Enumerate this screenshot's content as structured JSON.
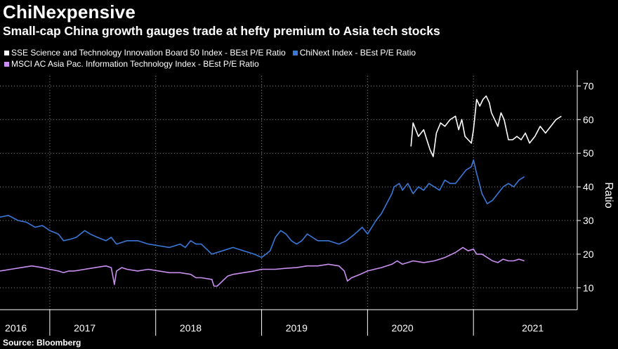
{
  "title": "ChiNexpensive",
  "subtitle": "Small-cap China growth gauges trade at hefty premium to Asia tech stocks",
  "source": "Source: Bloomberg",
  "colors": {
    "star50": "#ffffff",
    "chinext": "#3a78d8",
    "msci": "#c98ef0",
    "grid": "#8a8a8a",
    "axis": "#ffffff"
  },
  "chart_data": {
    "type": "line",
    "ylabel": "Ratio",
    "ylim": [
      3.5,
      73
    ],
    "yticks": [
      10,
      20,
      30,
      40,
      50,
      60,
      70
    ],
    "ytick_labels": [
      "10",
      "20",
      "30",
      "40",
      "50",
      "60",
      "70"
    ],
    "xlim": [
      2016.0,
      2021.45
    ],
    "year_labels": [
      {
        "label": "2016",
        "at": 2016.15
      },
      {
        "label": "2017",
        "at": 2016.8
      },
      {
        "label": "2018",
        "at": 2017.8
      },
      {
        "label": "2019",
        "at": 2018.8
      },
      {
        "label": "2020",
        "at": 2019.8
      },
      {
        "label": "2021",
        "at": 2021.03
      }
    ],
    "year_dividers": [
      2016.47,
      2017.47,
      2018.47,
      2019.47,
      2020.47
    ],
    "series": [
      {
        "name": "SSE Science and Technology Innovation Board 50 Index - BEst P/E Ratio",
        "key": "star50",
        "points": [
          [
            2019.88,
            52
          ],
          [
            2019.9,
            59
          ],
          [
            2019.95,
            55
          ],
          [
            2020.0,
            57
          ],
          [
            2020.03,
            54
          ],
          [
            2020.06,
            51
          ],
          [
            2020.09,
            49
          ],
          [
            2020.12,
            56
          ],
          [
            2020.16,
            59
          ],
          [
            2020.2,
            58
          ],
          [
            2020.25,
            60
          ],
          [
            2020.3,
            61
          ],
          [
            2020.33,
            57
          ],
          [
            2020.36,
            60
          ],
          [
            2020.39,
            55
          ],
          [
            2020.42,
            54
          ],
          [
            2020.45,
            53
          ],
          [
            2020.47,
            57
          ],
          [
            2020.5,
            66
          ],
          [
            2020.53,
            64
          ],
          [
            2020.56,
            66
          ],
          [
            2020.59,
            67
          ],
          [
            2020.62,
            65
          ],
          [
            2020.64,
            62
          ],
          [
            2020.67,
            60
          ],
          [
            2020.7,
            58
          ],
          [
            2020.73,
            62
          ],
          [
            2020.76,
            60
          ],
          [
            2020.8,
            54
          ],
          [
            2020.84,
            54
          ],
          [
            2020.88,
            55
          ],
          [
            2020.92,
            54
          ],
          [
            2020.96,
            56
          ],
          [
            2021.0,
            53
          ],
          [
            2021.05,
            55
          ],
          [
            2021.1,
            58
          ],
          [
            2021.15,
            56
          ],
          [
            2021.2,
            58
          ],
          [
            2021.25,
            60
          ],
          [
            2021.3,
            61
          ]
        ]
      },
      {
        "name": "ChiNext Index - BEst P/E Ratio",
        "key": "chinext",
        "points": [
          [
            2016.0,
            31
          ],
          [
            2016.08,
            31.5
          ],
          [
            2016.17,
            30
          ],
          [
            2016.25,
            29.5
          ],
          [
            2016.33,
            28
          ],
          [
            2016.4,
            28.5
          ],
          [
            2016.47,
            27
          ],
          [
            2016.55,
            26
          ],
          [
            2016.6,
            24
          ],
          [
            2016.67,
            24.5
          ],
          [
            2016.72,
            25
          ],
          [
            2016.8,
            27
          ],
          [
            2016.85,
            26
          ],
          [
            2016.92,
            25
          ],
          [
            2017.0,
            24
          ],
          [
            2017.05,
            25
          ],
          [
            2017.1,
            23
          ],
          [
            2017.2,
            24
          ],
          [
            2017.3,
            24
          ],
          [
            2017.4,
            23
          ],
          [
            2017.5,
            22.5
          ],
          [
            2017.6,
            22
          ],
          [
            2017.7,
            23
          ],
          [
            2017.75,
            22
          ],
          [
            2017.8,
            24
          ],
          [
            2017.85,
            23
          ],
          [
            2017.9,
            23
          ],
          [
            2018.0,
            20
          ],
          [
            2018.1,
            21
          ],
          [
            2018.2,
            22
          ],
          [
            2018.3,
            21
          ],
          [
            2018.4,
            20
          ],
          [
            2018.47,
            19
          ],
          [
            2018.55,
            21
          ],
          [
            2018.6,
            25
          ],
          [
            2018.65,
            27
          ],
          [
            2018.7,
            26
          ],
          [
            2018.75,
            24
          ],
          [
            2018.8,
            23
          ],
          [
            2018.85,
            24
          ],
          [
            2018.9,
            26
          ],
          [
            2018.95,
            25
          ],
          [
            2019.0,
            24
          ],
          [
            2019.1,
            24
          ],
          [
            2019.2,
            23
          ],
          [
            2019.27,
            24
          ],
          [
            2019.35,
            26
          ],
          [
            2019.42,
            28
          ],
          [
            2019.47,
            26
          ],
          [
            2019.55,
            30
          ],
          [
            2019.6,
            32
          ],
          [
            2019.65,
            35
          ],
          [
            2019.7,
            38
          ],
          [
            2019.72,
            40
          ],
          [
            2019.77,
            41
          ],
          [
            2019.8,
            39
          ],
          [
            2019.85,
            41
          ],
          [
            2019.9,
            38
          ],
          [
            2019.95,
            40
          ],
          [
            2020.0,
            39
          ],
          [
            2020.05,
            41
          ],
          [
            2020.1,
            40
          ],
          [
            2020.15,
            39
          ],
          [
            2020.2,
            42
          ],
          [
            2020.25,
            41
          ],
          [
            2020.3,
            41
          ],
          [
            2020.35,
            43
          ],
          [
            2020.4,
            45
          ],
          [
            2020.45,
            46
          ],
          [
            2020.47,
            48
          ],
          [
            2020.5,
            44
          ],
          [
            2020.55,
            38
          ],
          [
            2020.6,
            35
          ],
          [
            2020.65,
            36
          ],
          [
            2020.7,
            38
          ],
          [
            2020.75,
            40
          ],
          [
            2020.8,
            41
          ],
          [
            2020.85,
            40
          ],
          [
            2020.9,
            42
          ],
          [
            2020.95,
            43
          ]
        ]
      },
      {
        "name": "MSCI AC Asia Pac. Information Technology Index - BEst P/E Ratio",
        "key": "msci",
        "points": [
          [
            2016.0,
            15
          ],
          [
            2016.1,
            15.5
          ],
          [
            2016.2,
            16
          ],
          [
            2016.3,
            16.5
          ],
          [
            2016.4,
            16
          ],
          [
            2016.47,
            15.5
          ],
          [
            2016.55,
            15
          ],
          [
            2016.6,
            14.5
          ],
          [
            2016.65,
            15
          ],
          [
            2016.7,
            15
          ],
          [
            2016.8,
            15.5
          ],
          [
            2016.9,
            16
          ],
          [
            2017.0,
            16.5
          ],
          [
            2017.05,
            16
          ],
          [
            2017.08,
            11
          ],
          [
            2017.1,
            15
          ],
          [
            2017.15,
            16
          ],
          [
            2017.2,
            15.5
          ],
          [
            2017.3,
            15
          ],
          [
            2017.4,
            15.5
          ],
          [
            2017.5,
            15
          ],
          [
            2017.6,
            14.5
          ],
          [
            2017.7,
            14.5
          ],
          [
            2017.8,
            14
          ],
          [
            2017.85,
            13
          ],
          [
            2017.9,
            13
          ],
          [
            2018.0,
            12.5
          ],
          [
            2018.02,
            10.5
          ],
          [
            2018.05,
            10.5
          ],
          [
            2018.1,
            12
          ],
          [
            2018.15,
            13.5
          ],
          [
            2018.2,
            14
          ],
          [
            2018.3,
            14.5
          ],
          [
            2018.4,
            15
          ],
          [
            2018.47,
            15.5
          ],
          [
            2018.55,
            15.5
          ],
          [
            2018.6,
            15.5
          ],
          [
            2018.7,
            15.8
          ],
          [
            2018.8,
            16
          ],
          [
            2018.9,
            16.5
          ],
          [
            2019.0,
            16.5
          ],
          [
            2019.1,
            17
          ],
          [
            2019.2,
            16.5
          ],
          [
            2019.25,
            15
          ],
          [
            2019.28,
            12
          ],
          [
            2019.32,
            13
          ],
          [
            2019.4,
            14
          ],
          [
            2019.47,
            15
          ],
          [
            2019.6,
            16
          ],
          [
            2019.7,
            17
          ],
          [
            2019.75,
            18
          ],
          [
            2019.8,
            17
          ],
          [
            2019.9,
            18
          ],
          [
            2020.0,
            17.5
          ],
          [
            2020.1,
            18
          ],
          [
            2020.2,
            19
          ],
          [
            2020.3,
            20.5
          ],
          [
            2020.37,
            22
          ],
          [
            2020.42,
            21
          ],
          [
            2020.47,
            21.5
          ],
          [
            2020.5,
            20
          ],
          [
            2020.55,
            20
          ],
          [
            2020.6,
            19
          ],
          [
            2020.65,
            18
          ],
          [
            2020.7,
            17.5
          ],
          [
            2020.75,
            18.5
          ],
          [
            2020.8,
            18
          ],
          [
            2020.85,
            18
          ],
          [
            2020.9,
            18.5
          ],
          [
            2020.95,
            18
          ]
        ]
      }
    ]
  }
}
